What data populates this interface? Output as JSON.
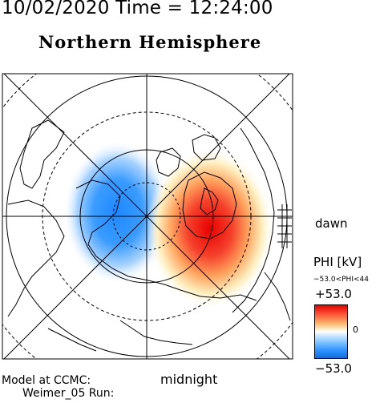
{
  "header": {
    "datetime": "10/02/2020 Time = 12:24:00",
    "title": "Northern Hemisphere"
  },
  "map": {
    "orientation_labels": {
      "dawn": "dawn",
      "midnight": "midnight"
    },
    "potential_cells": [
      {
        "sign": "negative",
        "color": "#1e88ff"
      },
      {
        "sign": "positive",
        "color": "#e60000"
      }
    ]
  },
  "legend": {
    "title": "PHI [kV]",
    "range_text": "−53.0<PHI<44",
    "max_label": "+53.0",
    "zero_label": "0",
    "min_label": "−53.0",
    "colors": {
      "max": "#e60000",
      "mid": "#ffffff",
      "min": "#0a6fe0"
    }
  },
  "model": {
    "line1": "Model at CCMC:",
    "line2": "Weimer_05 Run:"
  }
}
